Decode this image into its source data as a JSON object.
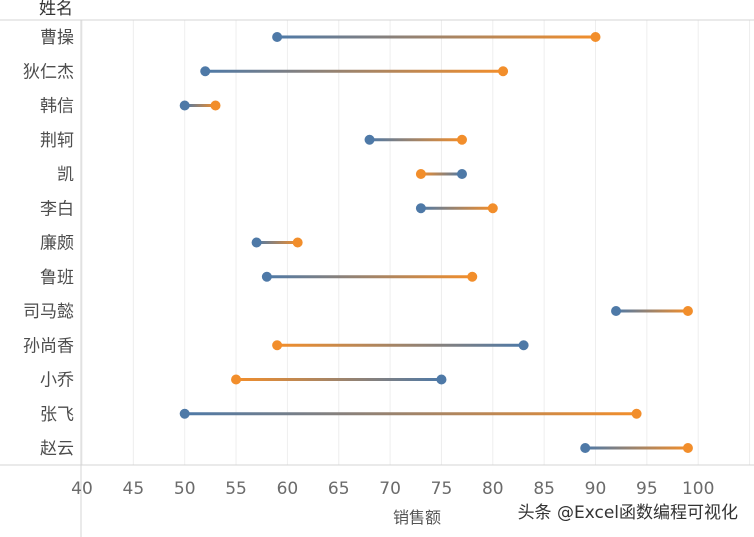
{
  "chart_data": {
    "type": "dumbbell",
    "ylabel": "姓名",
    "xlabel": "销售额",
    "xlim": [
      38,
      105
    ],
    "xticks": [
      40,
      45,
      50,
      55,
      60,
      65,
      70,
      75,
      80,
      85,
      90,
      95,
      100
    ],
    "grid": true,
    "colors": {
      "blue": "#4e79a7",
      "orange": "#f28e2b"
    },
    "categories": [
      "曹操",
      "狄仁杰",
      "韩信",
      "荆轲",
      "凯",
      "李白",
      "廉颇",
      "鲁班",
      "司马懿",
      "孙尚香",
      "小乔",
      "张飞",
      "赵云"
    ],
    "series": [
      {
        "color": "blue",
        "values": [
          59,
          52,
          50,
          68,
          77,
          73,
          57,
          58,
          92,
          83,
          75,
          50,
          89
        ]
      },
      {
        "color": "orange",
        "values": [
          90,
          81,
          53,
          77,
          73,
          80,
          61,
          78,
          99,
          59,
          55,
          94,
          99
        ]
      }
    ]
  },
  "watermark": "头条 @Excel函数编程可视化"
}
